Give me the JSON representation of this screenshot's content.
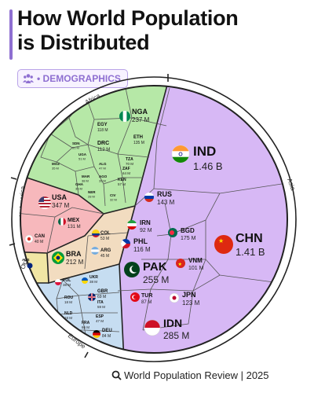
{
  "header": {
    "title_line1": "How World Population",
    "title_line2": "is Distributed",
    "badge": "• DEMOGRAPHICS"
  },
  "footer": {
    "text": "World Population Review | 2025"
  },
  "colors": {
    "asia": "#d7b8f5",
    "africa": "#b6e8a7",
    "n_america": "#f7b8bc",
    "s_america": "#f2dcc0",
    "europe": "#c6ddf1",
    "oceania": "#f1e6a4",
    "accent": "#8e6fd1"
  },
  "chart_data": {
    "type": "voronoi-treemap",
    "title": "How World Population is Distributed",
    "regions": [
      {
        "name": "Asia",
        "value_total": null
      },
      {
        "name": "Africa"
      },
      {
        "name": "N. America"
      },
      {
        "name": "Europe"
      },
      {
        "name": "Oceania"
      }
    ],
    "countries": [
      {
        "code": "IND",
        "value": "1.46 B",
        "region": "Asia"
      },
      {
        "code": "CHN",
        "value": "1.41 B",
        "region": "Asia"
      },
      {
        "code": "PAK",
        "value": "255 M",
        "region": "Asia"
      },
      {
        "code": "IDN",
        "value": "285 M",
        "region": "Asia"
      },
      {
        "code": "RUS",
        "value": "143 M",
        "region": "Asia"
      },
      {
        "code": "BGD",
        "value": "175 M",
        "region": "Asia"
      },
      {
        "code": "IRN",
        "value": "92 M",
        "region": "Asia"
      },
      {
        "code": "PHL",
        "value": "116 M",
        "region": "Asia"
      },
      {
        "code": "VNM",
        "value": "101 M",
        "region": "Asia"
      },
      {
        "code": "TUR",
        "value": "87 M",
        "region": "Asia"
      },
      {
        "code": "JPN",
        "value": "123 M",
        "region": "Asia"
      },
      {
        "code": "NGA",
        "value": "237 M",
        "region": "Africa"
      },
      {
        "code": "EGY",
        "value": "118 M",
        "region": "Africa"
      },
      {
        "code": "ETH",
        "value": "135 M",
        "region": "Africa"
      },
      {
        "code": "DRC",
        "value": "112 M",
        "region": "Africa"
      },
      {
        "code": "TZA",
        "value": "70 M",
        "region": "Africa"
      },
      {
        "code": "ZAF",
        "value": "64 M",
        "region": "Africa"
      },
      {
        "code": "KEN",
        "value": "57 M",
        "region": "Africa"
      },
      {
        "code": "SDN",
        "value": "51 M",
        "region": "Africa"
      },
      {
        "code": "UGA",
        "value": "51 M",
        "region": "Africa"
      },
      {
        "code": "ALG",
        "value": "47 M",
        "region": "Africa"
      },
      {
        "code": "AGO",
        "value": "39 M",
        "region": "Africa"
      },
      {
        "code": "MAR",
        "value": "38 M",
        "region": "Africa"
      },
      {
        "code": "GHA",
        "value": "35 M",
        "region": "Africa"
      },
      {
        "code": "MOZ",
        "value": "35 M",
        "region": "Africa"
      },
      {
        "code": "NER",
        "value": "28 M",
        "region": "Africa"
      },
      {
        "code": "CIV",
        "value": "32 M",
        "region": "Africa"
      },
      {
        "code": "USA",
        "value": "347 M",
        "region": "N. America"
      },
      {
        "code": "MEX",
        "value": "131 M",
        "region": "N. America"
      },
      {
        "code": "CAN",
        "value": "40 M",
        "region": "N. America"
      },
      {
        "code": "BRA",
        "value": "212 M",
        "region": "S. America"
      },
      {
        "code": "COL",
        "value": "53 M",
        "region": "S. America"
      },
      {
        "code": "ARG",
        "value": "45 M",
        "region": "S. America"
      },
      {
        "code": "AUS",
        "value": "27 M",
        "region": "Oceania"
      },
      {
        "code": "UKR",
        "value": "38 M",
        "region": "Europe"
      },
      {
        "code": "POL",
        "value": "38 M",
        "region": "Europe"
      },
      {
        "code": "GBR",
        "value": "69 M",
        "region": "Europe"
      },
      {
        "code": "ROU",
        "value": "18 M",
        "region": "Europe"
      },
      {
        "code": "NLD",
        "value": "18 M",
        "region": "Europe"
      },
      {
        "code": "ITA",
        "value": "59 M",
        "region": "Europe"
      },
      {
        "code": "ESP",
        "value": "47 M",
        "region": "Europe"
      },
      {
        "code": "FRA",
        "value": "66 M",
        "region": "Europe"
      },
      {
        "code": "DEU",
        "value": "84 M",
        "region": "Europe"
      }
    ]
  }
}
